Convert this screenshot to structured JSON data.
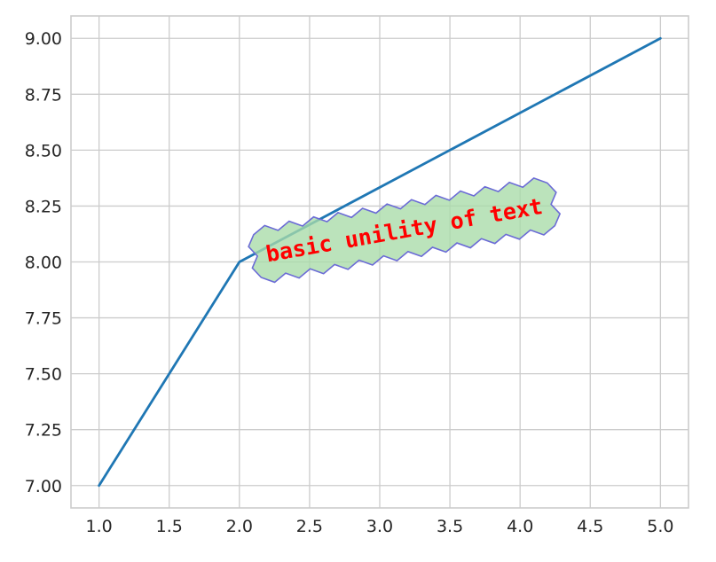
{
  "chart_data": {
    "type": "line",
    "x": [
      1,
      2,
      5
    ],
    "series": [
      {
        "values": [
          7,
          8,
          9
        ],
        "color": "#1f77b4"
      }
    ],
    "xlim": [
      0.8,
      5.2
    ],
    "ylim": [
      6.9,
      9.1
    ],
    "xticks": [
      1.0,
      1.5,
      2.0,
      2.5,
      3.0,
      3.5,
      4.0,
      4.5,
      5.0
    ],
    "xtick_labels": [
      "1.0",
      "1.5",
      "2.0",
      "2.5",
      "3.0",
      "3.5",
      "4.0",
      "4.5",
      "5.0"
    ],
    "yticks": [
      7.0,
      7.25,
      7.5,
      7.75,
      8.0,
      8.25,
      8.5,
      8.75,
      9.0
    ],
    "ytick_labels": [
      "7.00",
      "7.25",
      "7.50",
      "7.75",
      "8.00",
      "8.25",
      "8.50",
      "8.75",
      "9.00"
    ],
    "grid": true,
    "annotation": {
      "text": "basic unility of text",
      "x": 2.2,
      "y": 8.0,
      "rotation_deg": 10,
      "text_color": "#ff0000",
      "box_face_color": "#a8dba8",
      "box_edge_color": "#6b6bd6",
      "box_style": "sawtooth"
    }
  }
}
